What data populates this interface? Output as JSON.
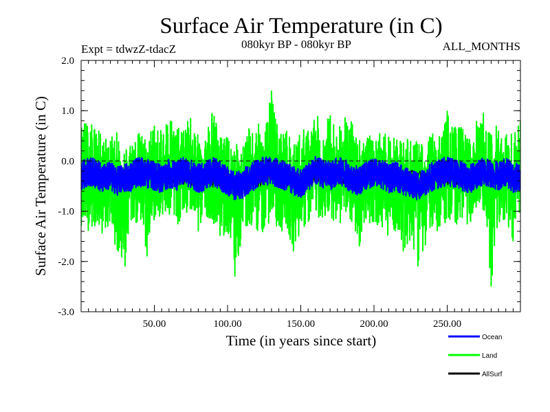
{
  "chart_data": {
    "type": "line",
    "title": "Surface Air Temperature (in C)",
    "subtitle_left": "Expt = tdwzZ-tdacZ",
    "subtitle_center": "080kyr BP - 080kyr BP",
    "subtitle_right": "ALL_MONTHS",
    "xlabel": "Time (in years since start)",
    "ylabel": "Surface Air Temperature (in C)",
    "xlim": [
      0,
      300
    ],
    "ylim": [
      -3.0,
      2.0
    ],
    "x_ticks": [
      50,
      100,
      150,
      200,
      250
    ],
    "x_tick_labels": [
      "50.00",
      "100.00",
      "150.00",
      "200.00",
      "250.00"
    ],
    "y_ticks": [
      2.0,
      1.0,
      0.0,
      -1.0,
      -2.0,
      -3.0
    ],
    "y_tick_labels": [
      "2.0",
      "1.0",
      "0.0",
      "-1.0",
      "-2.0",
      "-3.0"
    ],
    "reference_line": 0.0,
    "grid": false,
    "legend_position": "bottom-right",
    "series": [
      {
        "name": "Land",
        "color": "#00ff00",
        "x": [
          0,
          5,
          10,
          15,
          20,
          25,
          30,
          35,
          40,
          45,
          50,
          55,
          60,
          65,
          70,
          75,
          80,
          85,
          90,
          95,
          100,
          105,
          110,
          115,
          120,
          125,
          130,
          135,
          140,
          145,
          150,
          155,
          160,
          165,
          170,
          175,
          180,
          185,
          190,
          195,
          200,
          205,
          210,
          215,
          220,
          225,
          230,
          235,
          240,
          245,
          250,
          255,
          260,
          265,
          270,
          275,
          280,
          285,
          290,
          295,
          300
        ],
        "values": [
          -0.6,
          -0.2,
          0.5,
          -1.2,
          0.4,
          -0.8,
          -2.1,
          0.3,
          0.2,
          -1.9,
          0.7,
          -0.5,
          0.1,
          -1.1,
          0.6,
          -0.3,
          -1.4,
          0.4,
          0.1,
          -0.9,
          -0.7,
          -2.3,
          -1.0,
          -0.2,
          0.3,
          -0.6,
          1.4,
          -0.4,
          0.3,
          -1.8,
          -0.9,
          0.6,
          0.4,
          -0.3,
          0.7,
          -0.5,
          -0.2,
          0.5,
          -1.7,
          0.3,
          0.2,
          -1.2,
          -0.7,
          0.3,
          -1.8,
          0.4,
          -2.1,
          -0.6,
          0.1,
          -1.3,
          1.0,
          -0.4,
          0.3,
          -0.9,
          0.8,
          -0.2,
          -2.5,
          0.6,
          -0.8,
          -1.6,
          0.8
        ],
        "spread_values": [
          0.9,
          0.8,
          0.7,
          0.5,
          0.5,
          0.6,
          0.3,
          0.5,
          0.6,
          0.5,
          0.8,
          0.6,
          1.1,
          0.7,
          0.6,
          1.0,
          0.5,
          0.6,
          1.1,
          0.5,
          0.5,
          0.4,
          0.3,
          0.7,
          0.8,
          0.6,
          1.4,
          0.6,
          0.7,
          0.3,
          0.7,
          0.6,
          1.0,
          0.7,
          1.0,
          0.6,
          1.0,
          0.8,
          0.5,
          0.6,
          0.4,
          0.6,
          0.5,
          0.5,
          0.5,
          0.4,
          0.4,
          0.4,
          0.6,
          0.5,
          1.0,
          0.7,
          0.7,
          0.5,
          0.7,
          1.0,
          0.6,
          0.8,
          0.6,
          0.6,
          0.8
        ],
        "spread_min": [
          -1.3,
          -1.4,
          -1.3,
          -1.5,
          -1.3,
          -1.9,
          -2.1,
          -1.2,
          -1.4,
          -1.9,
          -1.2,
          -1.1,
          -1.2,
          -1.3,
          -1.2,
          -1.0,
          -1.4,
          -1.1,
          -1.2,
          -1.6,
          -1.4,
          -2.3,
          -1.6,
          -1.3,
          -1.4,
          -1.5,
          -1.1,
          -1.5,
          -1.3,
          -1.8,
          -1.4,
          -1.3,
          -1.1,
          -1.2,
          -1.1,
          -1.3,
          -1.2,
          -1.3,
          -1.7,
          -1.2,
          -1.3,
          -1.4,
          -1.5,
          -1.4,
          -1.8,
          -1.6,
          -2.1,
          -1.7,
          -1.3,
          -1.5,
          -1.2,
          -1.3,
          -1.2,
          -1.3,
          -1.1,
          -1.2,
          -2.5,
          -1.3,
          -1.2,
          -1.6,
          -1.0
        ]
      },
      {
        "name": "Ocean",
        "color": "#0000ff",
        "x": [
          0,
          5,
          10,
          15,
          20,
          25,
          30,
          35,
          40,
          45,
          50,
          55,
          60,
          65,
          70,
          75,
          80,
          85,
          90,
          95,
          100,
          105,
          110,
          115,
          120,
          125,
          130,
          135,
          140,
          145,
          150,
          155,
          160,
          165,
          170,
          175,
          180,
          185,
          190,
          195,
          200,
          205,
          210,
          215,
          220,
          225,
          230,
          235,
          240,
          245,
          250,
          255,
          260,
          265,
          270,
          275,
          280,
          285,
          290,
          295,
          300
        ],
        "values": [
          -0.3,
          -0.2,
          -0.25,
          -0.35,
          -0.3,
          -0.4,
          -0.35,
          -0.3,
          -0.2,
          -0.25,
          -0.3,
          -0.35,
          -0.25,
          -0.3,
          -0.2,
          -0.25,
          -0.35,
          -0.3,
          -0.2,
          -0.3,
          -0.4,
          -0.5,
          -0.45,
          -0.35,
          -0.25,
          -0.2,
          -0.2,
          -0.25,
          -0.3,
          -0.4,
          -0.45,
          -0.3,
          -0.2,
          -0.25,
          -0.3,
          -0.2,
          -0.25,
          -0.35,
          -0.4,
          -0.3,
          -0.2,
          -0.25,
          -0.35,
          -0.3,
          -0.4,
          -0.45,
          -0.5,
          -0.4,
          -0.3,
          -0.25,
          -0.2,
          -0.25,
          -0.3,
          -0.35,
          -0.3,
          -0.2,
          -0.25,
          -0.3,
          -0.2,
          -0.35,
          -0.3
        ],
        "spread": 0.3
      },
      {
        "name": "AllSurf",
        "color": "#000000",
        "x": [
          0,
          50,
          100,
          150,
          200,
          250,
          300
        ],
        "values": [
          -0.35,
          -0.3,
          -0.4,
          -0.35,
          -0.3,
          -0.35,
          -0.3
        ],
        "hidden_under_other_series": true
      }
    ]
  },
  "legend": {
    "items": [
      {
        "label": "Ocean",
        "color": "#0000ff"
      },
      {
        "label": "Land",
        "color": "#00ff00"
      },
      {
        "label": "AllSurf",
        "color": "#000000"
      }
    ]
  }
}
